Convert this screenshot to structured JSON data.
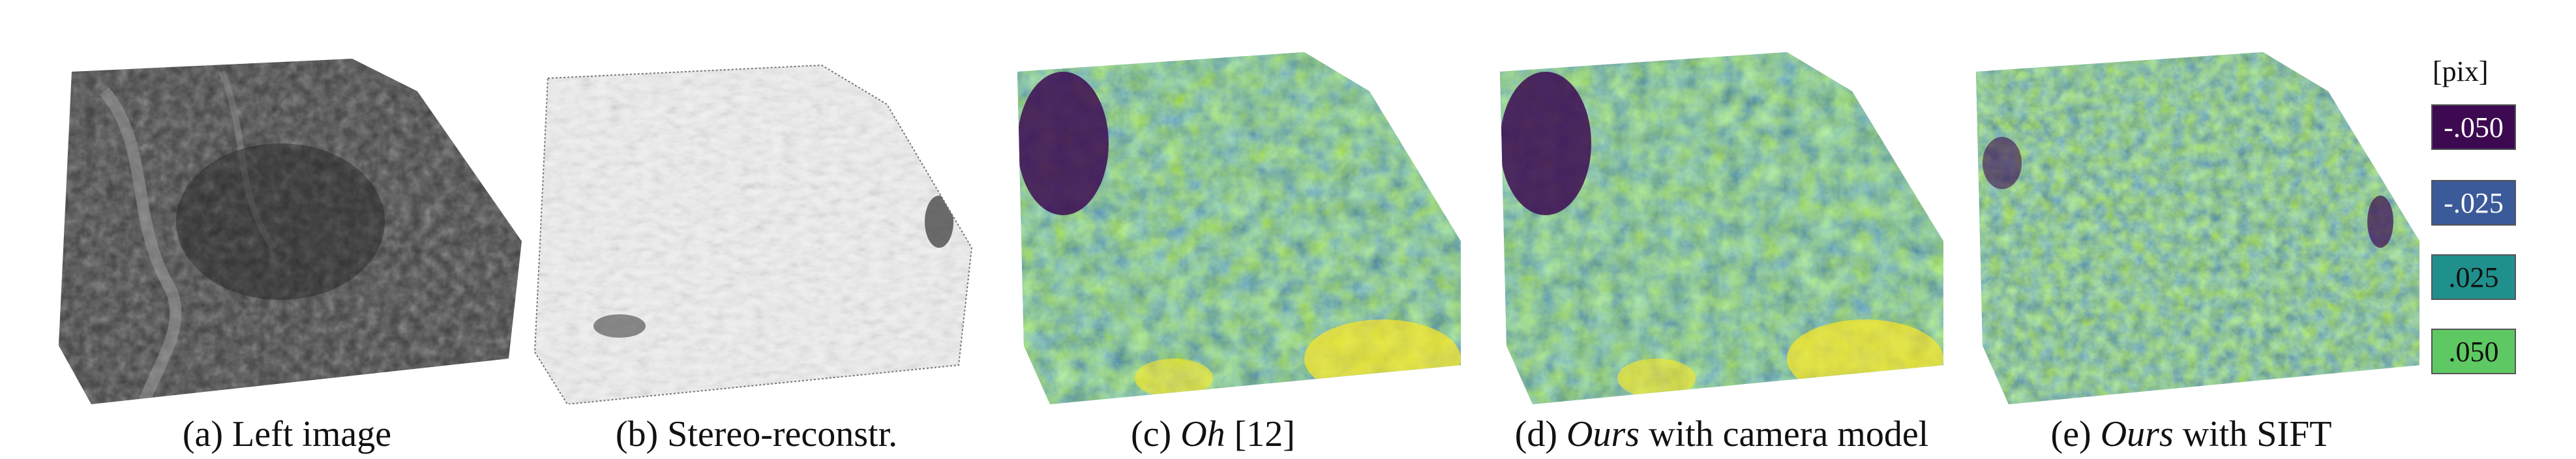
{
  "panels": [
    {
      "caption_prefix": "(a) ",
      "caption_italic": "",
      "caption_rest": "Left image",
      "style": "grayscale"
    },
    {
      "caption_prefix": "(b) ",
      "caption_italic": "",
      "caption_rest": "Stereo-reconstr.",
      "style": "relief"
    },
    {
      "caption_prefix": "(c) ",
      "caption_italic": "Oh",
      "caption_rest": " [12]",
      "style": "heat"
    },
    {
      "caption_prefix": "(d) ",
      "caption_italic": "Ours",
      "caption_rest": " with camera model",
      "style": "heat"
    },
    {
      "caption_prefix": "(e) ",
      "caption_italic": "Ours",
      "caption_rest": " with SIFT",
      "style": "heat"
    }
  ],
  "legend": {
    "unit": "[pix]",
    "entries": [
      {
        "label": "-.050",
        "color": "#3d0a52",
        "text_color": "#ffffff"
      },
      {
        "label": "-.025",
        "color": "#3b5a9a",
        "text_color": "#ffffff"
      },
      {
        "label": ".025",
        "color": "#20908c",
        "text_color": "#111111"
      },
      {
        "label": ".050",
        "color": "#5ec962",
        "text_color": "#111111"
      }
    ]
  }
}
